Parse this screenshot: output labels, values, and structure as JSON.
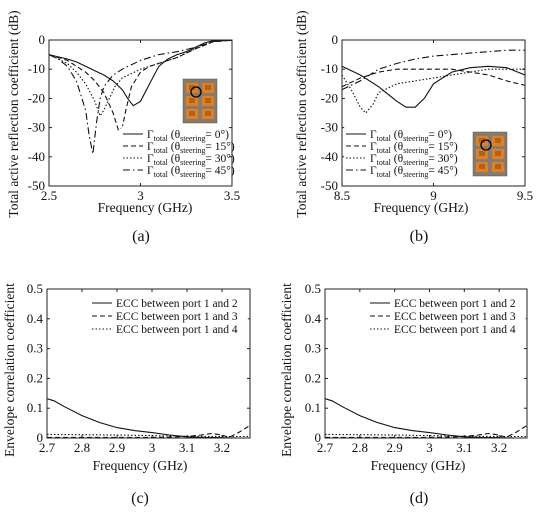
{
  "chart_data": [
    {
      "type": "line",
      "caption": "(a)",
      "xlabel": "Frequency (GHz)",
      "ylabel": "Total active reflection coefficient (dB)",
      "xlim": [
        2.5,
        3.5
      ],
      "ylim": [
        -50,
        0
      ],
      "xticks": [
        2.5,
        3,
        3.5
      ],
      "yticks": [
        0,
        -10,
        -20,
        -30,
        -40,
        -50
      ],
      "xtick_labels": [
        "2.5",
        "3",
        "3.5"
      ],
      "ytick_labels": [
        "0",
        "-10",
        "-20",
        "-30",
        "-40",
        "-50"
      ],
      "legend_position": "lower-right",
      "inset_image": "antenna-photo-thumbnail",
      "series": [
        {
          "name": "Γtotal (θsteering= 0°)",
          "dash": "solid",
          "x": [
            2.5,
            2.6,
            2.65,
            2.7,
            2.75,
            2.8,
            2.85,
            2.9,
            2.93,
            2.96,
            3.0,
            3.05,
            3.1,
            3.15,
            3.2,
            3.25,
            3.3,
            3.35,
            3.4,
            3.45,
            3.5
          ],
          "y": [
            -5,
            -6.5,
            -7.5,
            -9,
            -10.5,
            -12,
            -14,
            -17,
            -20,
            -22.5,
            -21,
            -15,
            -9,
            -6.5,
            -5,
            -4,
            -2.5,
            -1,
            -0.2,
            -0.1,
            -0.1
          ]
        },
        {
          "name": "Γtotal (θsteering= 15°)",
          "dash": "dashed",
          "x": [
            2.5,
            2.6,
            2.7,
            2.75,
            2.8,
            2.85,
            2.88,
            2.9,
            2.92,
            2.95,
            3.0,
            3.05,
            3.1,
            3.15,
            3.2,
            3.3,
            3.4,
            3.5
          ],
          "y": [
            -5,
            -7,
            -11,
            -14,
            -18,
            -25,
            -31,
            -30,
            -24,
            -16,
            -11,
            -9,
            -8,
            -7,
            -6,
            -3,
            -0.5,
            -0.1
          ]
        },
        {
          "name": "Γtotal (θsteering= 30°)",
          "dash": "dotted",
          "x": [
            2.5,
            2.6,
            2.65,
            2.7,
            2.75,
            2.78,
            2.8,
            2.83,
            2.86,
            2.9,
            3.0,
            3.1,
            3.2,
            3.3,
            3.4,
            3.5
          ],
          "y": [
            -5,
            -8,
            -11,
            -15,
            -21,
            -26,
            -24,
            -20,
            -16,
            -13,
            -10,
            -8,
            -6,
            -3,
            -0.5,
            -0.1
          ]
        },
        {
          "name": "Γtotal (θsteering= 45°)",
          "dash": "dashdot",
          "x": [
            2.5,
            2.55,
            2.6,
            2.65,
            2.7,
            2.72,
            2.74,
            2.76,
            2.78,
            2.8,
            2.85,
            2.9,
            3.0,
            3.1,
            3.2,
            3.3,
            3.4,
            3.5
          ],
          "y": [
            -5,
            -6.5,
            -9,
            -14,
            -24,
            -33,
            -39,
            -28,
            -20,
            -16,
            -12,
            -10,
            -7,
            -5,
            -4,
            -2.5,
            -0.5,
            -0.1
          ]
        }
      ]
    },
    {
      "type": "line",
      "caption": "(b)",
      "xlabel": "Frequency (GHz)",
      "ylabel": "Total active reflection coefficient (dB)",
      "xlim": [
        8.5,
        9.5
      ],
      "ylim": [
        -50,
        0
      ],
      "xticks": [
        8.5,
        9,
        9.5
      ],
      "yticks": [
        0,
        -10,
        -20,
        -30,
        -40,
        -50
      ],
      "xtick_labels": [
        "8.5",
        "9",
        "9.5"
      ],
      "ytick_labels": [
        "0",
        "-10",
        "-20",
        "-30",
        "-40",
        "-50"
      ],
      "legend_position": "lower-left",
      "inset_image": "antenna-photo-thumbnail",
      "series": [
        {
          "name": "Γtotal (θsteering= 0°)",
          "dash": "solid",
          "x": [
            8.5,
            8.6,
            8.7,
            8.8,
            8.85,
            8.9,
            8.95,
            9.0,
            9.1,
            9.2,
            9.3,
            9.4,
            9.5
          ],
          "y": [
            -9,
            -12,
            -16,
            -21,
            -23,
            -23,
            -20,
            -15,
            -11,
            -9.5,
            -9,
            -9.5,
            -12
          ]
        },
        {
          "name": "Γtotal (θsteering= 15°)",
          "dash": "dashed",
          "x": [
            8.5,
            8.55,
            8.6,
            8.7,
            8.8,
            9.0,
            9.1,
            9.2,
            9.3,
            9.4,
            9.5
          ],
          "y": [
            -16,
            -14.5,
            -13,
            -11,
            -10,
            -10,
            -10,
            -11,
            -12,
            -14,
            -15.5
          ]
        },
        {
          "name": "Γtotal (θsteering= 30°)",
          "dash": "dotted",
          "x": [
            8.5,
            8.55,
            8.6,
            8.63,
            8.67,
            8.7,
            8.8,
            8.9,
            9.0,
            9.1,
            9.2,
            9.3,
            9.4,
            9.5
          ],
          "y": [
            -12,
            -17,
            -23,
            -25,
            -22,
            -18,
            -15,
            -14,
            -13,
            -12,
            -11,
            -10,
            -10,
            -10
          ]
        },
        {
          "name": "Γtotal (θsteering= 45°)",
          "dash": "dashdot",
          "x": [
            8.5,
            8.6,
            8.7,
            8.8,
            8.9,
            9.0,
            9.1,
            9.2,
            9.3,
            9.4,
            9.5
          ],
          "y": [
            -17,
            -14,
            -10,
            -8,
            -6.5,
            -5.5,
            -5,
            -4.5,
            -4,
            -3.5,
            -3.5
          ]
        }
      ]
    },
    {
      "type": "line",
      "caption": "(c)",
      "xlabel": "Frequency (GHz)",
      "ylabel": "Envelope correlation coefficient",
      "xlim": [
        2.7,
        3.28
      ],
      "ylim": [
        0,
        0.5
      ],
      "xticks": [
        2.7,
        2.8,
        2.9,
        3.0,
        3.1,
        3.2
      ],
      "yticks": [
        0,
        0.1,
        0.2,
        0.3,
        0.4,
        0.5
      ],
      "xtick_labels": [
        "2.7",
        "2.8",
        "2.9",
        "3",
        "3.1",
        "3.2"
      ],
      "ytick_labels": [
        "0",
        "0.1",
        "0.2",
        "0.3",
        "0.4",
        "0.5"
      ],
      "legend_position": "upper-right",
      "series": [
        {
          "name": "ECC between port 1 and 2",
          "dash": "solid",
          "x": [
            2.7,
            2.72,
            2.75,
            2.8,
            2.85,
            2.9,
            2.95,
            3.0,
            3.05,
            3.1,
            3.15,
            3.2,
            3.25,
            3.28
          ],
          "y": [
            0.132,
            0.125,
            0.105,
            0.075,
            0.052,
            0.035,
            0.025,
            0.018,
            0.01,
            0.004,
            0.002,
            0.001,
            0.0,
            0.0
          ]
        },
        {
          "name": "ECC between port 1 and 3",
          "dash": "dashed",
          "x": [
            2.7,
            2.8,
            2.9,
            3.0,
            3.05,
            3.1,
            3.14,
            3.17,
            3.2,
            3.22,
            3.25,
            3.27,
            3.28
          ],
          "y": [
            0.002,
            0.002,
            0.002,
            0.002,
            0.003,
            0.005,
            0.01,
            0.015,
            0.01,
            0.002,
            0.02,
            0.035,
            0.042
          ]
        },
        {
          "name": "ECC between port 1 and 4",
          "dash": "dotted",
          "x": [
            2.7,
            2.8,
            2.9,
            3.0,
            3.1,
            3.2,
            3.28
          ],
          "y": [
            0.012,
            0.011,
            0.01,
            0.008,
            0.006,
            0.005,
            0.005
          ]
        }
      ]
    },
    {
      "type": "line",
      "caption": "(d)",
      "xlabel": "Frequency (GHz)",
      "ylabel": "Envelope correlation coefficient",
      "xlim": [
        2.7,
        3.28
      ],
      "ylim": [
        0,
        0.5
      ],
      "xticks": [
        2.7,
        2.8,
        2.9,
        3.0,
        3.1,
        3.2
      ],
      "yticks": [
        0,
        0.1,
        0.2,
        0.3,
        0.4,
        0.5
      ],
      "xtick_labels": [
        "2.7",
        "2.8",
        "2.9",
        "3",
        "3.1",
        "3.2"
      ],
      "ytick_labels": [
        "0",
        "0.1",
        "0.2",
        "0.3",
        "0.4",
        "0.5"
      ],
      "legend_position": "upper-right",
      "series": [
        {
          "name": "ECC between port 1 and 2",
          "dash": "solid",
          "x": [
            2.7,
            2.72,
            2.75,
            2.8,
            2.85,
            2.9,
            2.95,
            3.0,
            3.05,
            3.1,
            3.15,
            3.2,
            3.25,
            3.28
          ],
          "y": [
            0.132,
            0.125,
            0.105,
            0.075,
            0.052,
            0.035,
            0.025,
            0.018,
            0.01,
            0.004,
            0.002,
            0.001,
            0.0,
            0.0
          ]
        },
        {
          "name": "ECC between port 1 and 3",
          "dash": "dashed",
          "x": [
            2.7,
            2.8,
            2.9,
            3.0,
            3.05,
            3.1,
            3.14,
            3.17,
            3.2,
            3.22,
            3.25,
            3.27,
            3.28
          ],
          "y": [
            0.002,
            0.002,
            0.002,
            0.002,
            0.003,
            0.005,
            0.01,
            0.015,
            0.01,
            0.002,
            0.02,
            0.035,
            0.042
          ]
        },
        {
          "name": "ECC between port 1 and 4",
          "dash": "dotted",
          "x": [
            2.7,
            2.8,
            2.9,
            3.0,
            3.1,
            3.2,
            3.28
          ],
          "y": [
            0.012,
            0.011,
            0.01,
            0.008,
            0.006,
            0.005,
            0.005
          ]
        }
      ]
    }
  ]
}
